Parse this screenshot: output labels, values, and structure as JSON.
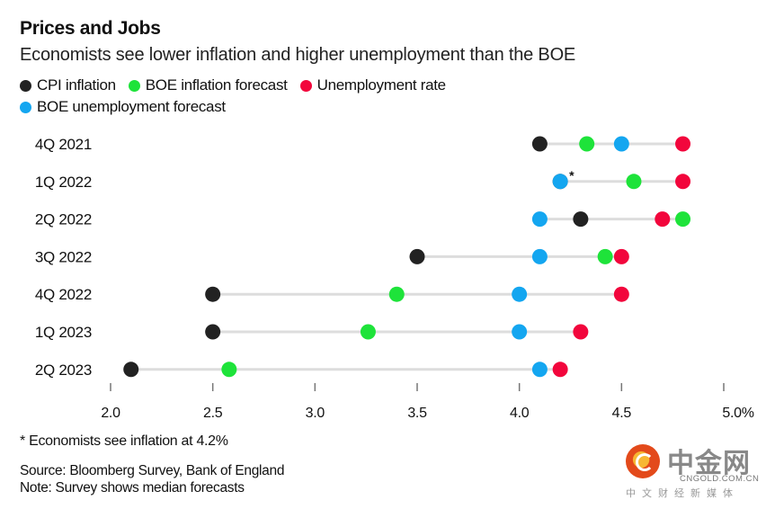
{
  "chart_data": {
    "type": "dot-range",
    "title": "Prices and Jobs",
    "subtitle": "Economists see lower inflation and higher unemployment than the BOE",
    "xlabel": "",
    "ylabel": "",
    "xlim": [
      2.0,
      5.0
    ],
    "x_ticks": [
      2.0,
      2.5,
      3.0,
      3.5,
      4.0,
      4.5,
      5.0
    ],
    "x_tick_labels": [
      "2.0",
      "2.5",
      "3.0",
      "3.5",
      "4.0",
      "4.5",
      "5.0%"
    ],
    "grid": false,
    "legend_placement": "top-left",
    "categories": [
      "4Q 2021",
      "1Q 2022",
      "2Q 2022",
      "3Q 2022",
      "4Q 2022",
      "1Q 2023",
      "2Q 2023"
    ],
    "series": [
      {
        "name": "CPI inflation",
        "color": "#222222",
        "values": [
          4.1,
          4.2,
          4.3,
          3.5,
          2.5,
          2.5,
          2.1
        ]
      },
      {
        "name": "BOE inflation forecast",
        "color": "#1ee33a",
        "values": [
          4.33,
          4.56,
          4.8,
          4.42,
          3.4,
          3.26,
          2.58
        ]
      },
      {
        "name": "Unemployment rate",
        "color": "#f2063c",
        "values": [
          4.8,
          4.8,
          4.7,
          4.5,
          4.5,
          4.3,
          4.2
        ]
      },
      {
        "name": "BOE unemployment forecast",
        "color": "#14a6f0",
        "values": [
          4.5,
          4.2,
          4.1,
          4.1,
          4.0,
          4.0,
          4.1
        ]
      }
    ],
    "draw_order": [
      0,
      1,
      2,
      3
    ],
    "annotations": [
      {
        "category": "1Q 2022",
        "x": 4.2,
        "text": "*"
      }
    ],
    "footnote": "* Economists see inflation at 4.2%"
  },
  "source": "Source: Bloomberg Survey, Bank of England",
  "note": "Note: Survey shows median forecasts",
  "watermark": {
    "name": "中金网",
    "domain": "CNGOLD.COM.CN",
    "tagline": "中文财经新媒体"
  },
  "colors": {
    "range_line": "#dddddd",
    "tick": "#777777"
  }
}
